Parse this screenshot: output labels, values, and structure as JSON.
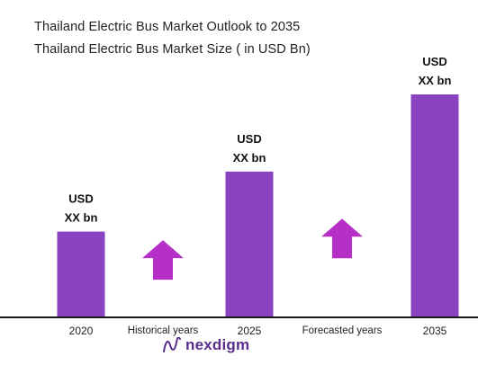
{
  "header": {
    "title": "Thailand Electric Bus Market Outlook to 2035",
    "subtitle": "Thailand Electric Bus Market Size ( in USD Bn)"
  },
  "colors": {
    "bar": "#8a44c2",
    "arrow": "#b62fc6",
    "axis": "#1a1a1a",
    "text": "#222222",
    "brand": "#5a2d8c"
  },
  "chart_data": {
    "type": "bar",
    "title": "Thailand Electric Bus Market Size ( in USD Bn)",
    "categories": [
      "2020",
      "2025",
      "2035"
    ],
    "values": [
      1.0,
      1.7,
      2.6
    ],
    "value_labels": [
      [
        "USD",
        "XX bn"
      ],
      [
        "USD",
        "XX bn"
      ],
      [
        "USD",
        "XX bn"
      ]
    ],
    "ylim": [
      0,
      2.6
    ],
    "grid": false,
    "legend": "none",
    "annotations": [
      {
        "text": "Historical years",
        "between": [
          "2020",
          "2025"
        ],
        "arrow_level": 0.9
      },
      {
        "text": "Forecasted years",
        "between": [
          "2025",
          "2035"
        ],
        "arrow_level": 1.15
      }
    ]
  },
  "brand": {
    "name": "nexdigm",
    "icon": "nexdigm-logo-icon"
  }
}
